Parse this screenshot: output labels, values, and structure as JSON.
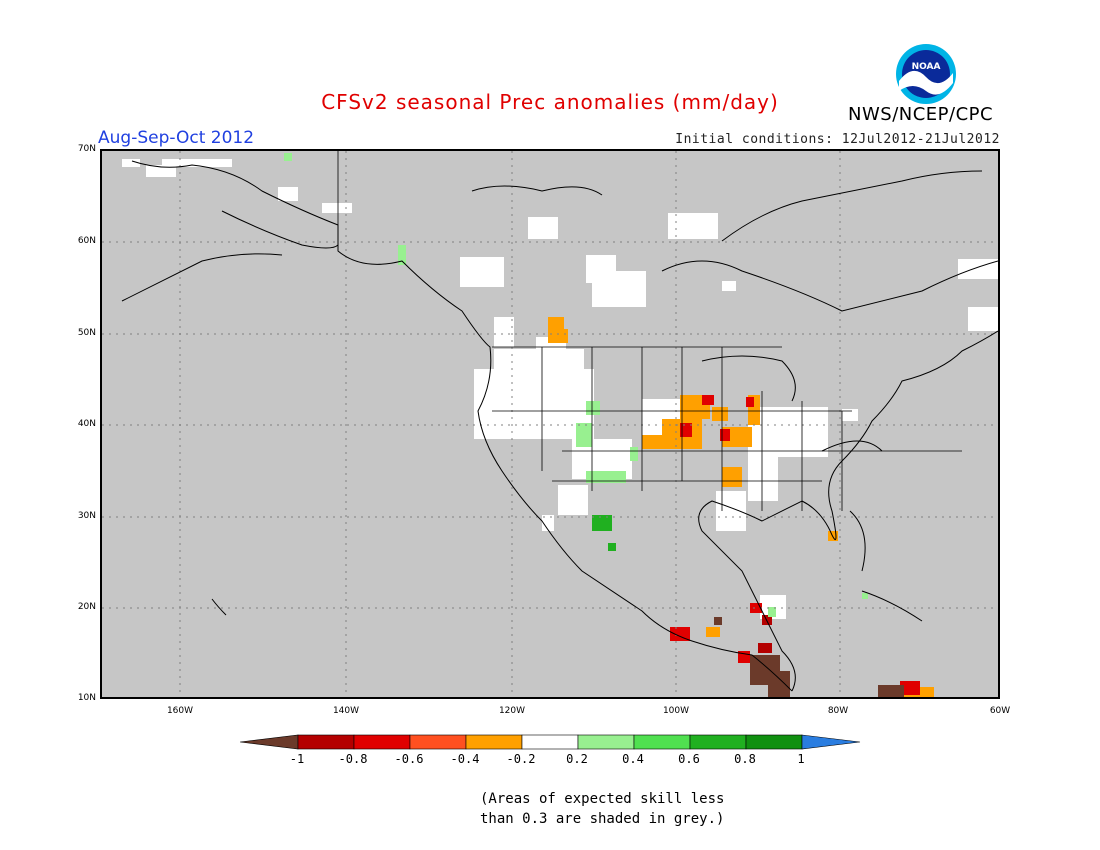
{
  "title": "CFSv2 seasonal Prec anomalies (mm/day)",
  "period": "Aug-Sep-Oct 2012",
  "initial_conditions": "Initial conditions: 12Jul2012-21Jul2012",
  "agency": "NWS/NCEP/CPC",
  "logo_text": "NOAA",
  "lat_labels": [
    "70N",
    "60N",
    "50N",
    "40N",
    "30N",
    "20N",
    "10N"
  ],
  "lon_labels": [
    "160W",
    "140W",
    "120W",
    "100W",
    "80W",
    "60W"
  ],
  "colorbar": {
    "labels": [
      "-1",
      "-0.8",
      "-0.6",
      "-0.4",
      "-0.2",
      "0.2",
      "0.4",
      "0.6",
      "0.8",
      "1"
    ],
    "colors": [
      "#6b3a2a",
      "#b40000",
      "#e00000",
      "#ff5020",
      "#ffa000",
      "#ffffff",
      "#98f090",
      "#50e050",
      "#20b020",
      "#109010",
      "#2a7de0"
    ]
  },
  "note_line1": "(Areas of expected skill less",
  "note_line2": "than 0.3 are shaded in grey.)"
}
